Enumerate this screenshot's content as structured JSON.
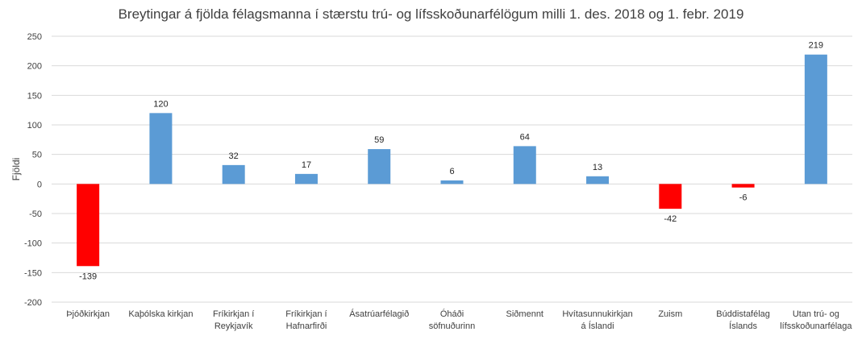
{
  "chart_data": {
    "type": "bar",
    "title": "Breytingar á fjölda félagsmanna í stærstu trú- og lífsskoðunarfélögum milli 1. des. 2018 og 1. febr. 2019",
    "xlabel": "",
    "ylabel": "Fjöldi",
    "ylim": [
      -200,
      250
    ],
    "yticks": [
      250,
      200,
      150,
      100,
      50,
      0,
      -50,
      -100,
      -150,
      -200
    ],
    "grid": true,
    "legend": "none",
    "categories": [
      [
        "Þjóðkirkjan"
      ],
      [
        "Kaþólska kirkjan"
      ],
      [
        "Fríkirkjan í",
        "Reykjavík"
      ],
      [
        "Fríkirkjan í",
        "Hafnarfirði"
      ],
      [
        "Ásatrúarfélagið"
      ],
      [
        "Óháði",
        "söfnuðurinn"
      ],
      [
        "Siðmennt"
      ],
      [
        "Hvítasunnukirkjan",
        "á Íslandi"
      ],
      [
        "Zuism"
      ],
      [
        "Búddistafélag",
        "Íslands"
      ],
      [
        "Utan trú- og",
        "lífsskoðunarfélaga"
      ]
    ],
    "values": [
      -139,
      120,
      32,
      17,
      59,
      6,
      64,
      13,
      -42,
      -6,
      219
    ],
    "colors": {
      "positive": "#5B9BD5",
      "negative": "#FF0000",
      "grid": "#D9D9D9"
    }
  }
}
